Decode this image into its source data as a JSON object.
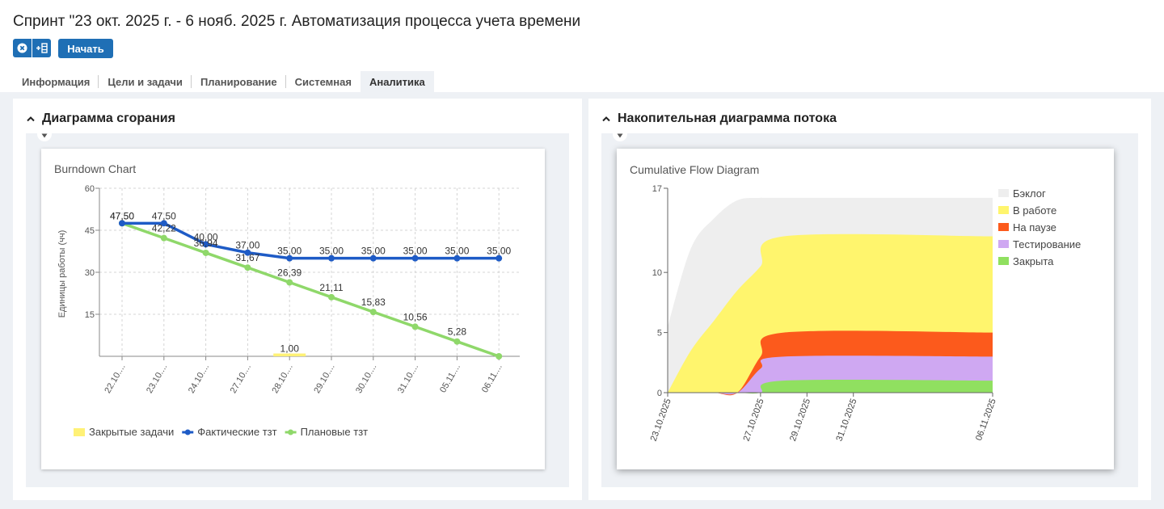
{
  "header": {
    "title": "Спринт \"23 окт. 2025 г. - 6 нояб. 2025 г. Автоматизация процесса учета времени",
    "icons": [
      "close-circle-icon",
      "add-to-list-icon"
    ],
    "start_label": "Начать"
  },
  "tabs": [
    {
      "label": "Информация"
    },
    {
      "label": "Цели и задачи"
    },
    {
      "label": "Планирование"
    },
    {
      "label": "Системная"
    },
    {
      "label": "Аналитика",
      "active": true
    }
  ],
  "panels": {
    "burndown": {
      "header": "Диаграмма сгорания"
    },
    "cfd": {
      "header": "Накопительная диаграмма потока"
    }
  },
  "chart_data": [
    {
      "type": "line",
      "title": "Burndown Chart",
      "xlabel": "",
      "ylabel": "Единицы работы (чч)",
      "ylim": [
        0,
        60
      ],
      "yticks": [
        "60",
        "45",
        "30",
        "15"
      ],
      "categories": [
        "22.10....",
        "23.10....",
        "24.10....",
        "27.10....",
        "28.10....",
        "29.10....",
        "30.10....",
        "31.10....",
        "05.11....",
        "06.11...."
      ],
      "grid": true,
      "legend_position": "bottom-left",
      "series": [
        {
          "name": "Закрытые задачи",
          "kind": "bar",
          "color": "#fff176",
          "values": [
            null,
            null,
            null,
            null,
            1,
            null,
            null,
            null,
            null,
            null
          ],
          "labels": [
            "",
            "",
            "",
            "",
            "1,00",
            "",
            "",
            "",
            "",
            ""
          ]
        },
        {
          "name": "Фактические тзт",
          "kind": "line",
          "color": "#1e5bc6",
          "values": [
            47.5,
            47.5,
            40,
            37,
            35,
            35,
            35,
            35,
            35,
            35
          ],
          "labels": [
            "47,50",
            "47,50",
            "40,00",
            "37,00",
            "35,00",
            "35,00",
            "35,00",
            "35,00",
            "35,00",
            "35,00"
          ]
        },
        {
          "name": "Плановые тзт",
          "kind": "line",
          "color": "#8fd86a",
          "values": [
            47.5,
            42.22,
            36.94,
            31.67,
            26.39,
            21.11,
            15.83,
            10.56,
            5.28,
            0
          ],
          "labels": [
            "47,50",
            "42,22",
            "36,94",
            "31,67",
            "26,39",
            "21,11",
            "15,83",
            "10,56",
            "5,28",
            ""
          ]
        }
      ]
    },
    {
      "type": "area",
      "title": "Cumulative Flow Diagram",
      "xlabel": "",
      "ylabel": "",
      "xlim": [
        "2025-10-23",
        "2025-11-06"
      ],
      "ylim": [
        0,
        17
      ],
      "yticks": [
        "17",
        "10",
        "5",
        "0"
      ],
      "xticks": [
        "23.10.2025",
        "27.10.2025",
        "29.10.2025",
        "31.10.2025",
        "06.11.2025"
      ],
      "legend_position": "top-right",
      "x": [
        "2025-10-23",
        "2025-10-24",
        "2025-10-25",
        "2025-10-26",
        "2025-10-27",
        "2025-10-28",
        "2025-11-06"
      ],
      "series": [
        {
          "name": "Закрыта",
          "color": "#90e060",
          "values": [
            0,
            0,
            0,
            0,
            0,
            1,
            1
          ]
        },
        {
          "name": "Тестирование",
          "color": "#cfa8f2",
          "values": [
            0,
            0,
            0,
            0,
            2,
            3,
            3
          ]
        },
        {
          "name": "На паузе",
          "color": "#fc5a1c",
          "values": [
            0,
            0,
            0,
            0,
            3,
            5,
            5
          ]
        },
        {
          "name": "В работе",
          "color": "#fff56d",
          "values": [
            0,
            3.5,
            6,
            8.5,
            10.5,
            13,
            13
          ]
        },
        {
          "name": "Бэклог",
          "color": "#eeeeee",
          "values": [
            5.5,
            12,
            14.5,
            16,
            16.2,
            16.2,
            16.2
          ]
        }
      ],
      "legend_order": [
        "Бэклог",
        "В работе",
        "На паузе",
        "Тестирование",
        "Закрыта"
      ]
    }
  ]
}
